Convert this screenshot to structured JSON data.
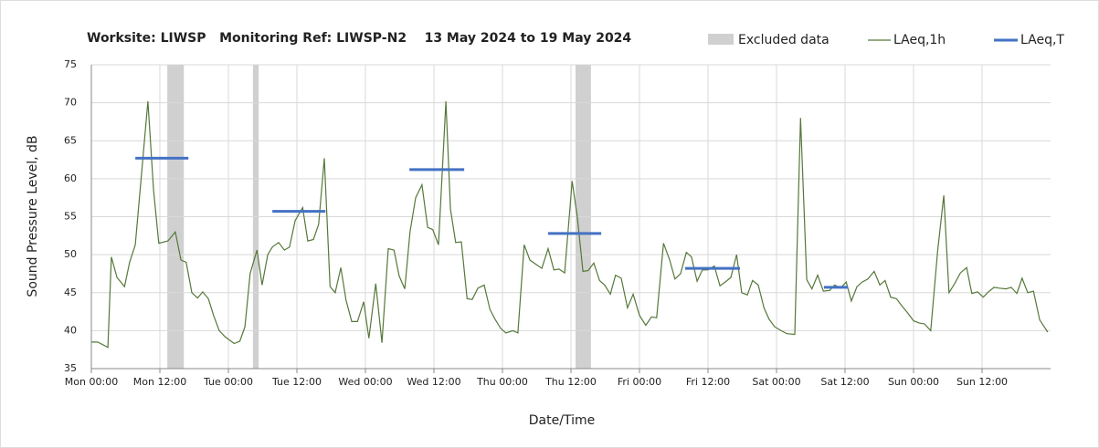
{
  "chart_data": {
    "type": "line",
    "title": "Worksite: LIWSP   Monitoring Ref: LIWSP-N2    13 May 2024 to 19 May 2024",
    "xlabel": "Date/Time",
    "ylabel": "Sound Pressure Level, dB",
    "xlim": [
      0,
      168
    ],
    "ylim": [
      35,
      75
    ],
    "xticks": [
      {
        "value": 0,
        "label": "Mon 00:00"
      },
      {
        "value": 12,
        "label": "Mon 12:00"
      },
      {
        "value": 24,
        "label": "Tue 00:00"
      },
      {
        "value": 36,
        "label": "Tue 12:00"
      },
      {
        "value": 48,
        "label": "Wed 00:00"
      },
      {
        "value": 60,
        "label": "Wed 12:00"
      },
      {
        "value": 72,
        "label": "Thu 00:00"
      },
      {
        "value": 84,
        "label": "Thu 12:00"
      },
      {
        "value": 96,
        "label": "Fri 00:00"
      },
      {
        "value": 108,
        "label": "Fri 12:00"
      },
      {
        "value": 120,
        "label": "Sat 00:00"
      },
      {
        "value": 132,
        "label": "Sat 12:00"
      },
      {
        "value": 144,
        "label": "Sun 00:00"
      },
      {
        "value": 156,
        "label": "Sun 12:00"
      }
    ],
    "yticks": [
      35,
      40,
      45,
      50,
      55,
      60,
      65,
      70,
      75
    ],
    "grid": true,
    "excluded": {
      "name": "Excluded data",
      "color": "#d0d0d0",
      "start": [
        13.3,
        28.3,
        84.8
      ],
      "end": [
        16.2,
        29.3,
        87.5
      ]
    },
    "series": [
      {
        "name": "LAeq,1h",
        "color": "#55783a",
        "x": [
          0,
          1.1,
          2.9,
          3.5,
          4.5,
          5.8,
          6.7,
          7.7,
          9.9,
          10.9,
          11.8,
          13.4,
          14.7,
          15.7,
          16.6,
          17.6,
          18.6,
          19.5,
          20.5,
          21.4,
          22.4,
          23.4,
          25,
          26,
          26.9,
          27.8,
          29,
          29.9,
          30.9,
          31.7,
          32.8,
          33.8,
          34.7,
          35.7,
          37,
          37.9,
          38.9,
          39.8,
          40.8,
          41.8,
          42.7,
          43.7,
          44.6,
          45.6,
          46.6,
          47.7,
          48.6,
          49.8,
          50.9,
          52,
          53,
          53.9,
          54.9,
          55.8,
          56.8,
          57.9,
          58.9,
          59.8,
          60.8,
          62.1,
          62.9,
          63.8,
          64.8,
          65.8,
          66.7,
          67.7,
          68.8,
          69.8,
          70.7,
          71.7,
          72.6,
          73.8,
          74.7,
          75.8,
          76.8,
          77.9,
          78.9,
          80,
          81,
          81.9,
          82.9,
          84.2,
          85.1,
          86.1,
          87,
          88,
          89,
          89.9,
          90.9,
          91.8,
          92.8,
          93.9,
          94.9,
          96,
          97.1,
          98.1,
          99,
          100.2,
          101.3,
          102.2,
          103.2,
          104.2,
          105.1,
          106.1,
          107,
          108,
          109.1,
          110.1,
          111,
          112,
          113,
          113.9,
          114.9,
          115.8,
          116.8,
          117.8,
          118.7,
          119.7,
          120.8,
          121.8,
          123.2,
          124.2,
          125.3,
          126.2,
          127.2,
          128.2,
          129.3,
          130.2,
          131.2,
          132.2,
          133.1,
          134.1,
          135,
          136,
          137.1,
          138.1,
          139,
          140,
          141,
          141.9,
          142.9,
          144,
          145,
          145.9,
          147,
          148.2,
          149.3,
          150.2,
          151.2,
          152.2,
          153.3,
          154.2,
          155.2,
          156.2,
          157.1,
          158.1,
          159,
          160.2,
          161.1,
          162.1,
          163,
          164,
          165,
          166.1,
          167.5
        ],
        "values": [
          38.5,
          38.5,
          37.8,
          49.7,
          47,
          45.8,
          49,
          51.3,
          70.2,
          58.5,
          51.5,
          51.8,
          53,
          49.3,
          49,
          45,
          44.3,
          45.1,
          44.2,
          42,
          40,
          39.2,
          38.3,
          38.6,
          40.5,
          47.5,
          50.6,
          46,
          50,
          51,
          51.6,
          50.6,
          51,
          54.5,
          56.2,
          51.8,
          52,
          54,
          62.7,
          45.8,
          45,
          48.3,
          44,
          41.2,
          41.2,
          43.8,
          39,
          46.2,
          38.4,
          50.8,
          50.6,
          47.2,
          45.5,
          53,
          57.5,
          59.2,
          53.6,
          53.3,
          51.3,
          70.2,
          56,
          51.6,
          51.7,
          44.2,
          44.1,
          45.6,
          46,
          42.8,
          41.5,
          40.3,
          39.7,
          40,
          39.7,
          51.3,
          49.3,
          48.7,
          48.2,
          50.8,
          48,
          48.1,
          47.6,
          59.7,
          55,
          47.8,
          47.9,
          48.9,
          46.6,
          46,
          44.8,
          47.3,
          46.9,
          43,
          44.8,
          42,
          40.7,
          41.8,
          41.7,
          51.5,
          49.3,
          46.8,
          47.5,
          50.3,
          49.7,
          46.5,
          48,
          48,
          48.5,
          45.9,
          46.4,
          47,
          50,
          45,
          44.7,
          46.6,
          46,
          43,
          41.5,
          40.5,
          40,
          39.6,
          39.5,
          68,
          46.7,
          45.5,
          47.3,
          45.2,
          45.3,
          46,
          45.6,
          46.4,
          43.9,
          45.8,
          46.4,
          46.8,
          47.8,
          46,
          46.6,
          44.4,
          44.2,
          43.3,
          42.4,
          41.3,
          41,
          40.9,
          40,
          50.4,
          57.8,
          45,
          46.2,
          47.6,
          48.3,
          44.9,
          45.1,
          44.4,
          45.1,
          45.7,
          45.6,
          45.5,
          45.7,
          44.9,
          46.9,
          45,
          45.2,
          41.4,
          39.8
        ]
      },
      {
        "name": "LAeq,T",
        "color": "#4472c4",
        "x_start": [
          7.7,
          31.7,
          55.7,
          80,
          104,
          128.3
        ],
        "x_end": [
          17,
          41,
          65.3,
          89.3,
          113.6,
          132.5
        ],
        "values": [
          62.7,
          55.7,
          61.2,
          52.8,
          48.2,
          45.7
        ]
      }
    ]
  }
}
